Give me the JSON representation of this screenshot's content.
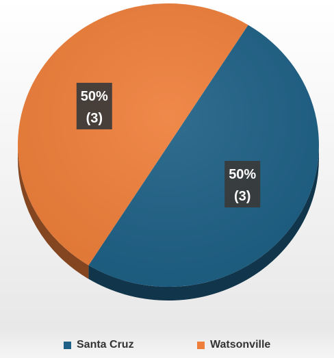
{
  "chart_data": {
    "type": "pie",
    "title": "",
    "categories": [
      "Santa Cruz",
      "Watsonville"
    ],
    "values": [
      3,
      3
    ],
    "percent_labels": [
      "50%",
      "50%"
    ],
    "count_labels": [
      "(3)",
      "(3)"
    ],
    "colors": [
      "#1f6186",
      "#ee7f3b"
    ],
    "legend_position": "bottom",
    "grid": false
  }
}
